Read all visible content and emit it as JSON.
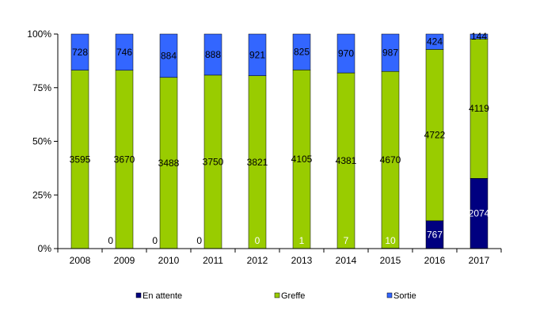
{
  "chart_data": {
    "type": "bar",
    "stacked": "percent",
    "title": "",
    "xlabel": "",
    "ylabel": "",
    "categories": [
      "2008",
      "2009",
      "2010",
      "2011",
      "2012",
      "2013",
      "2014",
      "2015",
      "2016",
      "2017"
    ],
    "series": [
      {
        "name": "En attente",
        "color": "#000080",
        "values": [
          0,
          0,
          0,
          0,
          0,
          1,
          7,
          10,
          767,
          2074
        ],
        "labels": [
          "",
          "0",
          "0",
          "0",
          "0",
          "1",
          "7",
          "10",
          "767",
          "2074"
        ]
      },
      {
        "name": "Greffe",
        "color": "#99CC00",
        "values": [
          3595,
          3670,
          3488,
          3750,
          3821,
          4105,
          4381,
          4670,
          4722,
          4119
        ],
        "labels": [
          "3595",
          "3670",
          "3488",
          "3750",
          "3821",
          "4105",
          "4381",
          "4670",
          "4722",
          "4119"
        ]
      },
      {
        "name": "Sortie",
        "color": "#3366FF",
        "values": [
          728,
          746,
          884,
          888,
          921,
          825,
          970,
          987,
          424,
          144
        ],
        "labels": [
          "728",
          "746",
          "884",
          "888",
          "921",
          "825",
          "970",
          "987",
          "424",
          "144"
        ]
      }
    ],
    "y_ticks": [
      "0%",
      "25%",
      "50%",
      "75%",
      "100%"
    ],
    "ylim": [
      0,
      100
    ],
    "legend_position": "bottom",
    "grid": false
  }
}
